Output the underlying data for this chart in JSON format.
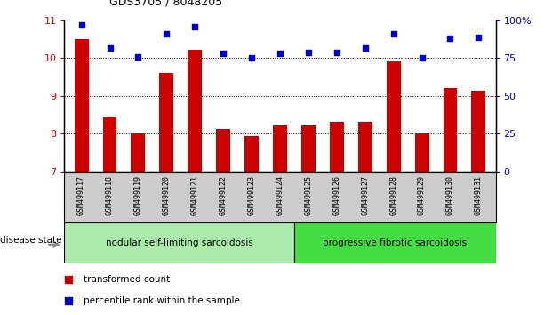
{
  "title": "GDS3705 / 8048205",
  "categories": [
    "GSM499117",
    "GSM499118",
    "GSM499119",
    "GSM499120",
    "GSM499121",
    "GSM499122",
    "GSM499123",
    "GSM499124",
    "GSM499125",
    "GSM499126",
    "GSM499127",
    "GSM499128",
    "GSM499129",
    "GSM499130",
    "GSM499131"
  ],
  "bar_values": [
    10.5,
    8.45,
    8.02,
    9.62,
    10.22,
    8.12,
    7.95,
    8.22,
    8.22,
    8.32,
    8.32,
    9.95,
    8.02,
    9.2,
    9.15
  ],
  "scatter_values_pct": [
    97,
    82,
    76,
    91,
    96,
    78,
    75,
    78,
    79,
    79,
    82,
    91,
    75,
    88,
    89
  ],
  "ylim_left": [
    7,
    11
  ],
  "yticks_left": [
    7,
    8,
    9,
    10,
    11
  ],
  "ylim_right": [
    0,
    100
  ],
  "yticks_right": [
    0,
    25,
    50,
    75,
    100
  ],
  "bar_color": "#cc0000",
  "scatter_color": "#0000cc",
  "bar_width": 0.5,
  "group1_label": "nodular self-limiting sarcoidosis",
  "group2_label": "progressive fibrotic sarcoidosis",
  "group1_count": 8,
  "disease_state_label": "disease state",
  "legend_bar": "transformed count",
  "legend_scatter": "percentile rank within the sample",
  "plot_bg": "#ffffff",
  "group1_color": "#aaeaaa",
  "group2_color": "#44dd44",
  "xtick_bg": "#cccccc",
  "tick_color_left": "#cc0000",
  "tick_color_right": "#0000cc"
}
